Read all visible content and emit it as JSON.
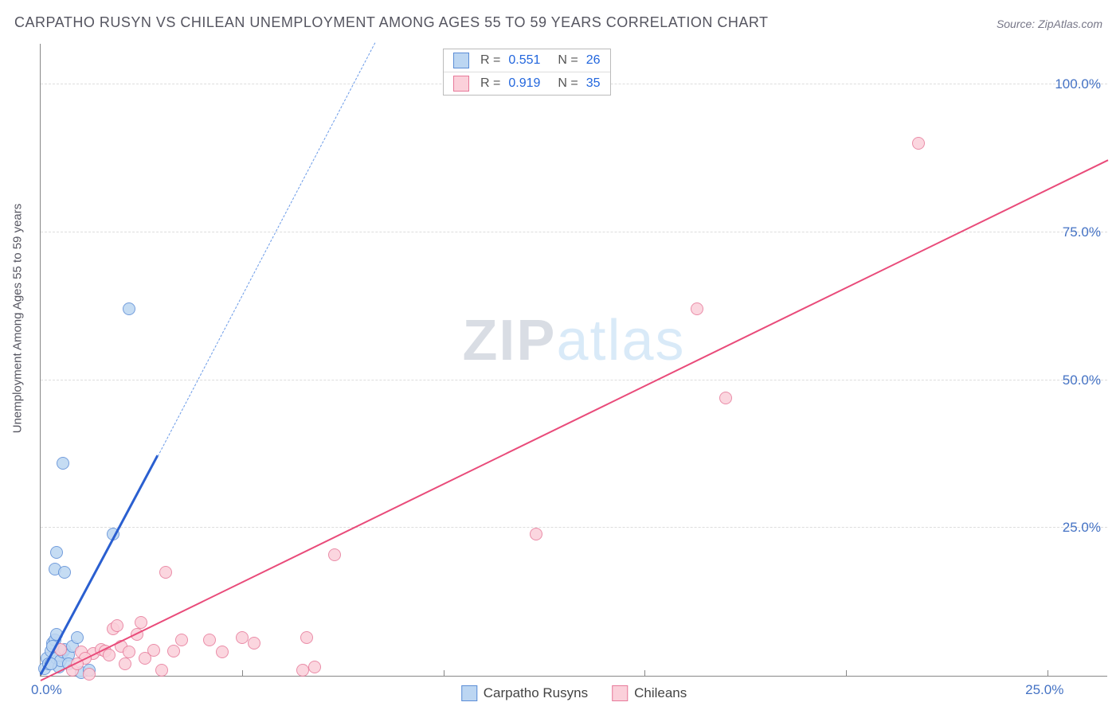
{
  "title": "CARPATHO RUSYN VS CHILEAN UNEMPLOYMENT AMONG AGES 55 TO 59 YEARS CORRELATION CHART",
  "source": "Source: ZipAtlas.com",
  "y_axis_label": "Unemployment Among Ages 55 to 59 years",
  "watermark": {
    "part1": "ZIP",
    "part2": "atlas"
  },
  "chart": {
    "type": "scatter",
    "background_color": "#ffffff",
    "grid_color": "#dddddd",
    "axis_color": "#888888",
    "tick_label_color": "#4472c4",
    "x_range": [
      0,
      26.5
    ],
    "y_range": [
      0,
      107
    ],
    "x_ticks": [
      0,
      5,
      10,
      15,
      20,
      25
    ],
    "x_tick_labels": {
      "0": "0.0%",
      "25": "25.0%"
    },
    "y_ticks": [
      25,
      50,
      75,
      100
    ],
    "y_tick_labels": {
      "25": "25.0%",
      "50": "50.0%",
      "75": "75.0%",
      "100": "100.0%"
    },
    "series": [
      {
        "name": "Carpatho Rusyns",
        "fill": "#bcd6f2",
        "stroke": "#5b8dd6",
        "marker_radius": 8,
        "points": [
          [
            0.1,
            1.2
          ],
          [
            0.15,
            3.0
          ],
          [
            0.2,
            2.0
          ],
          [
            0.25,
            4.2
          ],
          [
            0.3,
            5.5
          ],
          [
            0.35,
            6.0
          ],
          [
            0.4,
            3.0
          ],
          [
            0.45,
            1.5
          ],
          [
            0.5,
            2.5
          ],
          [
            0.55,
            4.0
          ],
          [
            0.35,
            18.0
          ],
          [
            0.4,
            20.8
          ],
          [
            0.6,
            17.5
          ],
          [
            0.55,
            36.0
          ],
          [
            2.2,
            62.0
          ],
          [
            0.3,
            5.0
          ],
          [
            0.6,
            4.5
          ],
          [
            0.7,
            3.5
          ],
          [
            0.8,
            5.0
          ],
          [
            0.9,
            6.5
          ],
          [
            1.8,
            24.0
          ],
          [
            0.25,
            2.0
          ],
          [
            0.7,
            2.0
          ],
          [
            1.0,
            0.5
          ],
          [
            1.2,
            1.0
          ],
          [
            0.4,
            7.0
          ]
        ],
        "regression": {
          "x1": 0,
          "y1": 0,
          "x2": 2.9,
          "y2": 37,
          "extend_to_x": 8.3,
          "extend_to_y": 107,
          "line_color": "#2a5fd0",
          "line_width": 3,
          "dash_color": "#6b9be8"
        },
        "stats": {
          "R": "0.551",
          "N": "26"
        }
      },
      {
        "name": "Chileans",
        "fill": "#fbd0da",
        "stroke": "#e77a9a",
        "marker_radius": 8,
        "points": [
          [
            0.5,
            4.5
          ],
          [
            0.8,
            1.0
          ],
          [
            1.0,
            4.0
          ],
          [
            1.2,
            0.3
          ],
          [
            1.3,
            3.8
          ],
          [
            1.5,
            4.5
          ],
          [
            1.6,
            4.2
          ],
          [
            1.8,
            8.0
          ],
          [
            1.9,
            8.5
          ],
          [
            2.0,
            5.0
          ],
          [
            2.2,
            4.0
          ],
          [
            2.4,
            7.0
          ],
          [
            2.5,
            9.0
          ],
          [
            2.8,
            4.3
          ],
          [
            3.0,
            1.0
          ],
          [
            3.1,
            17.5
          ],
          [
            3.3,
            4.2
          ],
          [
            3.5,
            6.0
          ],
          [
            4.2,
            6.0
          ],
          [
            4.5,
            4.0
          ],
          [
            5.0,
            6.5
          ],
          [
            5.3,
            5.5
          ],
          [
            6.5,
            1.0
          ],
          [
            6.6,
            6.5
          ],
          [
            6.8,
            1.5
          ],
          [
            7.3,
            20.5
          ],
          [
            12.3,
            24.0
          ],
          [
            16.3,
            62.0
          ],
          [
            17.0,
            47.0
          ],
          [
            21.8,
            90.0
          ],
          [
            1.1,
            3.0
          ],
          [
            1.7,
            3.5
          ],
          [
            2.1,
            2.0
          ],
          [
            0.9,
            2.0
          ],
          [
            2.6,
            3.0
          ]
        ],
        "regression": {
          "x1": 0,
          "y1": -1,
          "x2": 26.5,
          "y2": 87,
          "line_color": "#e94b7a",
          "line_width": 2.5
        },
        "stats": {
          "R": "0.919",
          "N": "35"
        }
      }
    ]
  },
  "bottom_legend": [
    {
      "label": "Carpatho Rusyns",
      "fill": "#bcd6f2",
      "stroke": "#5b8dd6"
    },
    {
      "label": "Chileans",
      "fill": "#fbd0da",
      "stroke": "#e77a9a"
    }
  ]
}
